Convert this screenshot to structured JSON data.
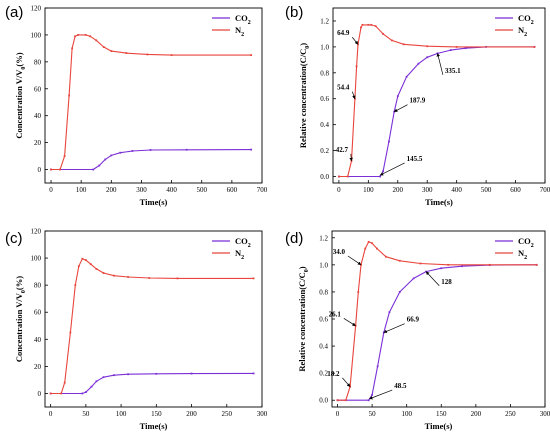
{
  "colors": {
    "co2": "#7b2fd6",
    "n2": "#e8453c",
    "axis": "#000000",
    "annotation": "#000000"
  },
  "chart_data": [
    {
      "panel": "(a)",
      "type": "line",
      "xlabel": "Time(s)",
      "ylabel": "Concentration V/V",
      "ylabel_sub": "0",
      "ylabel_unit": "(%)",
      "xlim": [
        -20,
        700
      ],
      "ylim": [
        -10,
        120
      ],
      "xticks": [
        0,
        100,
        200,
        300,
        400,
        500,
        600,
        700
      ],
      "yticks": [
        0,
        20,
        40,
        60,
        80,
        100,
        120
      ],
      "legend": {
        "position": "top-right",
        "entries": [
          {
            "label": "CO",
            "sub": "2",
            "series": "co2"
          },
          {
            "label": "N",
            "sub": "2",
            "series": "n2"
          }
        ]
      },
      "series": [
        {
          "key": "co2",
          "x": [
            0,
            140,
            160,
            180,
            200,
            230,
            270,
            330,
            450,
            664
          ],
          "y": [
            0,
            0,
            3,
            7.5,
            10.5,
            12.5,
            13.8,
            14.5,
            14.7,
            14.8
          ]
        },
        {
          "key": "n2",
          "x": [
            0,
            30,
            45,
            60,
            70,
            80,
            90,
            115,
            130,
            150,
            175,
            200,
            250,
            320,
            400,
            664
          ],
          "y": [
            0,
            0,
            10,
            55,
            90,
            99,
            100,
            100,
            99,
            96,
            91,
            88,
            86.5,
            85.5,
            85,
            85
          ]
        }
      ],
      "annotations": []
    },
    {
      "panel": "(b)",
      "type": "line",
      "xlabel": "Time(s)",
      "ylabel": "Relative concentration(C/C",
      "ylabel_sub": "0",
      "ylabel_unit": ")",
      "xlim": [
        -20,
        700
      ],
      "ylim": [
        -0.05,
        1.3
      ],
      "xticks": [
        0,
        100,
        200,
        300,
        400,
        500,
        600,
        700
      ],
      "yticks": [
        0.0,
        0.2,
        0.4,
        0.6,
        0.8,
        1.0,
        1.2
      ],
      "legend": {
        "position": "top-right",
        "entries": [
          {
            "label": "CO",
            "sub": "2",
            "series": "co2"
          },
          {
            "label": "N",
            "sub": "2",
            "series": "n2"
          }
        ]
      },
      "series": [
        {
          "key": "co2",
          "x": [
            0,
            140,
            150,
            170,
            187.9,
            200,
            230,
            270,
            300,
            335.1,
            380,
            430,
            500,
            664
          ],
          "y": [
            0,
            0,
            0.04,
            0.27,
            0.5,
            0.62,
            0.77,
            0.87,
            0.92,
            0.95,
            0.975,
            0.99,
            1.0,
            1.0
          ]
        },
        {
          "key": "n2",
          "x": [
            0,
            30,
            42.7,
            54.4,
            60,
            64.9,
            75,
            80,
            100,
            110,
            125,
            150,
            180,
            220,
            300,
            400,
            664
          ],
          "y": [
            0,
            0,
            0.12,
            0.6,
            0.85,
            1.02,
            1.15,
            1.17,
            1.17,
            1.17,
            1.16,
            1.1,
            1.05,
            1.02,
            1.005,
            1.0,
            1.0
          ]
        }
      ],
      "annotations": [
        {
          "text": "64.9",
          "point": [
            64.9,
            1.02
          ],
          "label_at": [
            15,
            1.09
          ]
        },
        {
          "text": "54.4",
          "point": [
            54.4,
            0.6
          ],
          "label_at": [
            15,
            0.67
          ]
        },
        {
          "text": "42.7",
          "point": [
            42.7,
            0.12
          ],
          "label_at": [
            10,
            0.19
          ]
        },
        {
          "text": "145.5",
          "point": [
            140,
            0.01
          ],
          "label_at": [
            230,
            0.12
          ]
        },
        {
          "text": "187.9",
          "point": [
            187.9,
            0.5
          ],
          "label_at": [
            240,
            0.57
          ]
        },
        {
          "text": "335.1",
          "point": [
            335.1,
            0.95
          ],
          "label_at": [
            360,
            0.8
          ]
        }
      ]
    },
    {
      "panel": "(c)",
      "type": "line",
      "xlabel": "Time(s)",
      "ylabel": "Concentration V/V",
      "ylabel_sub": "0",
      "ylabel_unit": "(%)",
      "xlim": [
        -8,
        300
      ],
      "ylim": [
        -10,
        120
      ],
      "xticks": [
        0,
        50,
        100,
        150,
        200,
        250,
        300
      ],
      "yticks": [
        0,
        20,
        40,
        60,
        80,
        100,
        120
      ],
      "legend": {
        "position": "top-right",
        "entries": [
          {
            "label": "CO",
            "sub": "2",
            "series": "co2"
          },
          {
            "label": "N",
            "sub": "2",
            "series": "n2"
          }
        ]
      },
      "series": [
        {
          "key": "co2",
          "x": [
            0,
            45,
            50,
            58,
            65,
            75,
            90,
            110,
            150,
            200,
            288
          ],
          "y": [
            0,
            0,
            1,
            5,
            9,
            12,
            13.5,
            14.2,
            14.5,
            14.7,
            14.8
          ]
        },
        {
          "key": "n2",
          "x": [
            0,
            15,
            20,
            28,
            35,
            40,
            45,
            50,
            57,
            65,
            75,
            90,
            110,
            140,
            180,
            288
          ],
          "y": [
            0,
            0,
            8,
            45,
            80,
            94,
            99.5,
            98.5,
            95.5,
            92,
            89,
            87,
            86,
            85.3,
            85,
            85
          ]
        }
      ],
      "annotations": []
    },
    {
      "panel": "(d)",
      "type": "line",
      "xlabel": "Time(s)",
      "ylabel": "Relative concentration(C/C",
      "ylabel_sub": "0",
      "ylabel_unit": ")",
      "xlim": [
        -8,
        300
      ],
      "ylim": [
        -0.05,
        1.25
      ],
      "xticks": [
        0,
        50,
        100,
        150,
        200,
        250,
        300
      ],
      "yticks": [
        0.0,
        0.2,
        0.4,
        0.6,
        0.8,
        1.0,
        1.2
      ],
      "legend": {
        "position": "top-right",
        "entries": [
          {
            "label": "CO",
            "sub": "2",
            "series": "co2"
          },
          {
            "label": "N",
            "sub": "2",
            "series": "n2"
          }
        ]
      },
      "series": [
        {
          "key": "co2",
          "x": [
            0,
            45,
            50,
            58,
            66.9,
            75,
            90,
            110,
            128,
            150,
            180,
            220,
            288
          ],
          "y": [
            0,
            0,
            0.04,
            0.25,
            0.5,
            0.65,
            0.8,
            0.9,
            0.95,
            0.975,
            0.99,
            0.998,
            1.0
          ]
        },
        {
          "key": "n2",
          "x": [
            0,
            12,
            18.2,
            26.1,
            30,
            34.0,
            40,
            45,
            50,
            57,
            70,
            90,
            120,
            160,
            220,
            288
          ],
          "y": [
            0,
            0,
            0.1,
            0.55,
            0.8,
            1.0,
            1.12,
            1.17,
            1.16,
            1.12,
            1.06,
            1.03,
            1.01,
            1.0,
            1.0,
            1.0
          ]
        }
      ],
      "annotations": [
        {
          "text": "34.0",
          "point": [
            34.0,
            1.0
          ],
          "label_at": [
            2,
            1.08
          ]
        },
        {
          "text": "26.1",
          "point": [
            26.1,
            0.55
          ],
          "label_at": [
            -4,
            0.62
          ]
        },
        {
          "text": "18.2",
          "point": [
            18.2,
            0.1
          ],
          "label_at": [
            -6,
            0.18
          ]
        },
        {
          "text": "48.5",
          "point": [
            46,
            0.01
          ],
          "label_at": [
            82,
            0.09
          ]
        },
        {
          "text": "66.9",
          "point": [
            66.9,
            0.5
          ],
          "label_at": [
            100,
            0.58
          ]
        },
        {
          "text": "128",
          "point": [
            128,
            0.95
          ],
          "label_at": [
            150,
            0.86
          ]
        }
      ]
    }
  ]
}
